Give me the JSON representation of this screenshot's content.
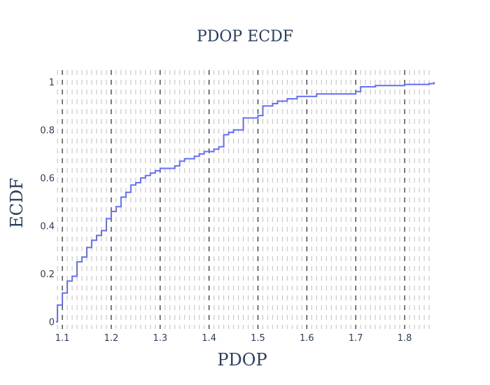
{
  "chart_data": {
    "type": "line",
    "title": "PDOP ECDF",
    "xlabel": "PDOP",
    "ylabel": "ECDF",
    "xlim": [
      1.087,
      1.86
    ],
    "ylim": [
      -0.03,
      1.05
    ],
    "xticks": [
      1.1,
      1.2,
      1.3,
      1.4,
      1.5,
      1.6,
      1.7,
      1.8
    ],
    "xtick_labels": [
      "1.1",
      "1.2",
      "1.3",
      "1.4",
      "1.5",
      "1.6",
      "1.7",
      "1.8"
    ],
    "yticks": [
      0,
      0.2,
      0.4,
      0.6,
      0.8,
      1
    ],
    "ytick_labels": [
      "0",
      "0.2",
      "0.4",
      "0.6",
      "0.8",
      "1"
    ],
    "minor_gridlines_x": [
      1.09,
      1.11,
      1.12,
      1.13,
      1.14,
      1.15,
      1.16,
      1.17,
      1.18,
      1.19,
      1.21,
      1.22,
      1.23,
      1.24,
      1.25,
      1.26,
      1.27,
      1.28,
      1.29,
      1.31,
      1.32,
      1.33,
      1.34,
      1.35,
      1.36,
      1.37,
      1.38,
      1.39,
      1.41,
      1.42,
      1.43,
      1.44,
      1.45,
      1.46,
      1.47,
      1.48,
      1.49,
      1.51,
      1.52,
      1.53,
      1.54,
      1.55,
      1.56,
      1.57,
      1.58,
      1.59,
      1.61,
      1.62,
      1.63,
      1.64,
      1.65,
      1.66,
      1.67,
      1.68,
      1.69,
      1.71,
      1.72,
      1.73,
      1.74,
      1.75,
      1.76,
      1.77,
      1.78,
      1.79,
      1.81,
      1.82,
      1.83,
      1.84,
      1.85
    ],
    "major_gridlines_x": [
      1.1,
      1.2,
      1.3,
      1.4,
      1.5,
      1.6,
      1.7,
      1.8
    ],
    "series": [
      {
        "color": "#636efa",
        "step": "hv",
        "x": [
          1.087,
          1.09,
          1.1,
          1.11,
          1.12,
          1.13,
          1.14,
          1.15,
          1.16,
          1.17,
          1.18,
          1.19,
          1.2,
          1.21,
          1.22,
          1.23,
          1.24,
          1.25,
          1.26,
          1.27,
          1.28,
          1.29,
          1.3,
          1.33,
          1.34,
          1.35,
          1.36,
          1.37,
          1.38,
          1.39,
          1.4,
          1.41,
          1.42,
          1.43,
          1.44,
          1.45,
          1.47,
          1.5,
          1.51,
          1.52,
          1.53,
          1.54,
          1.55,
          1.56,
          1.57,
          1.58,
          1.59,
          1.6,
          1.61,
          1.62,
          1.63,
          1.64,
          1.65,
          1.66,
          1.67,
          1.68,
          1.69,
          1.7,
          1.71,
          1.74,
          1.8,
          1.85,
          1.86
        ],
        "y": [
          0.0,
          0.07,
          0.12,
          0.17,
          0.19,
          0.25,
          0.27,
          0.31,
          0.34,
          0.36,
          0.38,
          0.43,
          0.46,
          0.48,
          0.52,
          0.54,
          0.57,
          0.58,
          0.6,
          0.61,
          0.62,
          0.63,
          0.64,
          0.65,
          0.67,
          0.68,
          0.68,
          0.69,
          0.7,
          0.71,
          0.71,
          0.72,
          0.73,
          0.78,
          0.79,
          0.8,
          0.85,
          0.86,
          0.9,
          0.9,
          0.91,
          0.92,
          0.92,
          0.93,
          0.93,
          0.94,
          0.94,
          0.94,
          0.94,
          0.95,
          0.95,
          0.95,
          0.95,
          0.95,
          0.95,
          0.95,
          0.95,
          0.96,
          0.98,
          0.985,
          0.99,
          0.993,
          1.0
        ]
      }
    ]
  }
}
